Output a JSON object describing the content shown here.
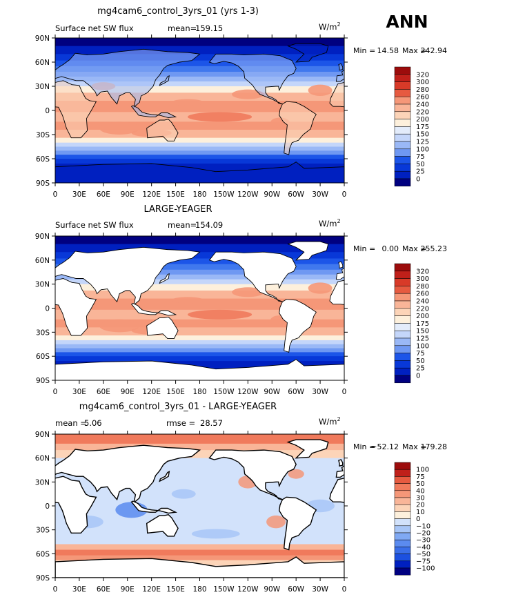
{
  "season": "ANN",
  "colors": {
    "land_mask": "#ffffff",
    "coastline": "#000000",
    "abs_scale": [
      "#000080",
      "#0020c0",
      "#0838d8",
      "#1c55e8",
      "#4078ee",
      "#6f98f2",
      "#9ab8f6",
      "#c4d6fa",
      "#e3ecfb",
      "#fdf0dc",
      "#fcd4b8",
      "#f9b598",
      "#f59778",
      "#f07a5c",
      "#e65a40",
      "#d83a28",
      "#c0201a",
      "#9c0c0c"
    ],
    "diff_scale": [
      "#000080",
      "#0020c0",
      "#1c50e0",
      "#3a6ee8",
      "#5b8bef",
      "#80a9f3",
      "#a8c6f7",
      "#d2e2fb",
      "#fdf0dc",
      "#fcd4b8",
      "#f9b598",
      "#f59778",
      "#f07a5c",
      "#e65a40",
      "#c0201a",
      "#9c0c0c"
    ]
  },
  "panels": [
    {
      "title": "mg4cam6_control_3yrs_01 (yrs 1-3)",
      "left_label": "Surface net SW flux",
      "stat1_label": "mean=",
      "stat1_value": "159.15",
      "stat2_label": "",
      "stat2_value": "",
      "units": "W/m",
      "units_sup": "2",
      "minmax_label_min": "Min =",
      "min_value": "14.58",
      "minmax_label_max": "Max =",
      "max_value": "242.94",
      "land_masked": false
    },
    {
      "title": "LARGE-YEAGER",
      "left_label": "Surface net SW flux",
      "stat1_label": "mean=",
      "stat1_value": "154.09",
      "stat2_label": "",
      "stat2_value": "",
      "units": "W/m",
      "units_sup": "2",
      "minmax_label_min": "Min =",
      "min_value": "0.00",
      "minmax_label_max": "Max =",
      "max_value": "255.23",
      "land_masked": true
    },
    {
      "title": "mg4cam6_control_3yrs_01 - LARGE-YEAGER",
      "left_label": "",
      "stat1_label": "mean =",
      "stat1_value": "5.06",
      "stat2_label": "rmse =",
      "stat2_value": "28.57",
      "units": "W/m",
      "units_sup": "2",
      "minmax_label_min": "Min =",
      "min_value": "−52.12",
      "minmax_label_max": "Max =",
      "max_value": "179.28",
      "land_masked": true
    }
  ],
  "axes": {
    "lat_ticks": [
      "90N",
      "60N",
      "30N",
      "0",
      "30S",
      "60S",
      "90S"
    ],
    "lon_ticks": [
      "0",
      "30E",
      "60E",
      "90E",
      "120E",
      "150E",
      "180",
      "150W",
      "120W",
      "90W",
      "60W",
      "30W",
      "0"
    ]
  },
  "colorbars": {
    "abs_levels": [
      "320",
      "300",
      "280",
      "260",
      "240",
      "220",
      "200",
      "175",
      "150",
      "125",
      "100",
      "75",
      "50",
      "25",
      "0"
    ],
    "diff_levels": [
      "100",
      "75",
      "50",
      "40",
      "30",
      "20",
      "10",
      "0",
      "−10",
      "−20",
      "−30",
      "−40",
      "−50",
      "−75",
      "−100"
    ]
  }
}
